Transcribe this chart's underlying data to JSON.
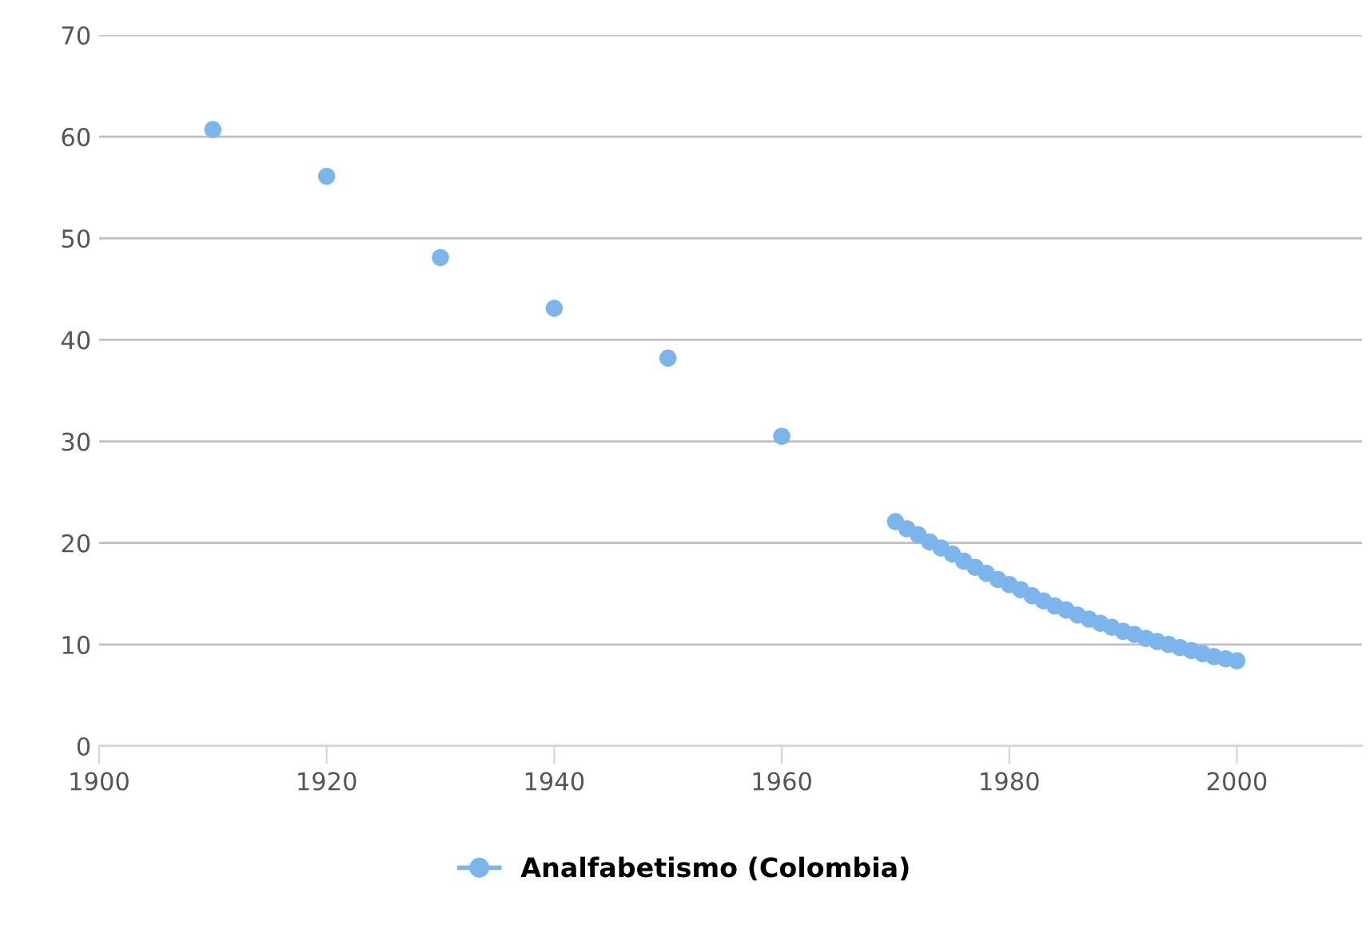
{
  "chart_data": {
    "type": "scatter",
    "x": [
      1910,
      1920,
      1930,
      1940,
      1950,
      1960,
      1970,
      1971,
      1972,
      1973,
      1974,
      1975,
      1976,
      1977,
      1978,
      1979,
      1980,
      1981,
      1982,
      1983,
      1984,
      1985,
      1986,
      1987,
      1988,
      1989,
      1990,
      1991,
      1992,
      1993,
      1994,
      1995,
      1996,
      1997,
      1998,
      1999,
      2000
    ],
    "series": [
      {
        "name": "Analfabetismo (Colombia)",
        "color": "#7cb5ec",
        "values": [
          60.7,
          56.1,
          48.1,
          43.1,
          38.2,
          30.5,
          22.1,
          21.4,
          20.8,
          20.1,
          19.5,
          18.9,
          18.2,
          17.6,
          17.0,
          16.4,
          15.9,
          15.4,
          14.8,
          14.3,
          13.8,
          13.4,
          12.9,
          12.5,
          12.1,
          11.7,
          11.3,
          11.0,
          10.6,
          10.3,
          10.0,
          9.7,
          9.4,
          9.1,
          8.8,
          8.6,
          8.4
        ]
      }
    ],
    "xlim": [
      1900,
      2011
    ],
    "xticks": [
      1900,
      1920,
      1940,
      1960,
      1980,
      2000
    ],
    "ylim": [
      0,
      70
    ],
    "yticks": [
      0,
      10,
      20,
      30,
      40,
      50,
      60,
      70
    ],
    "grid": "y",
    "legend": "bottom",
    "marker": "circle"
  }
}
